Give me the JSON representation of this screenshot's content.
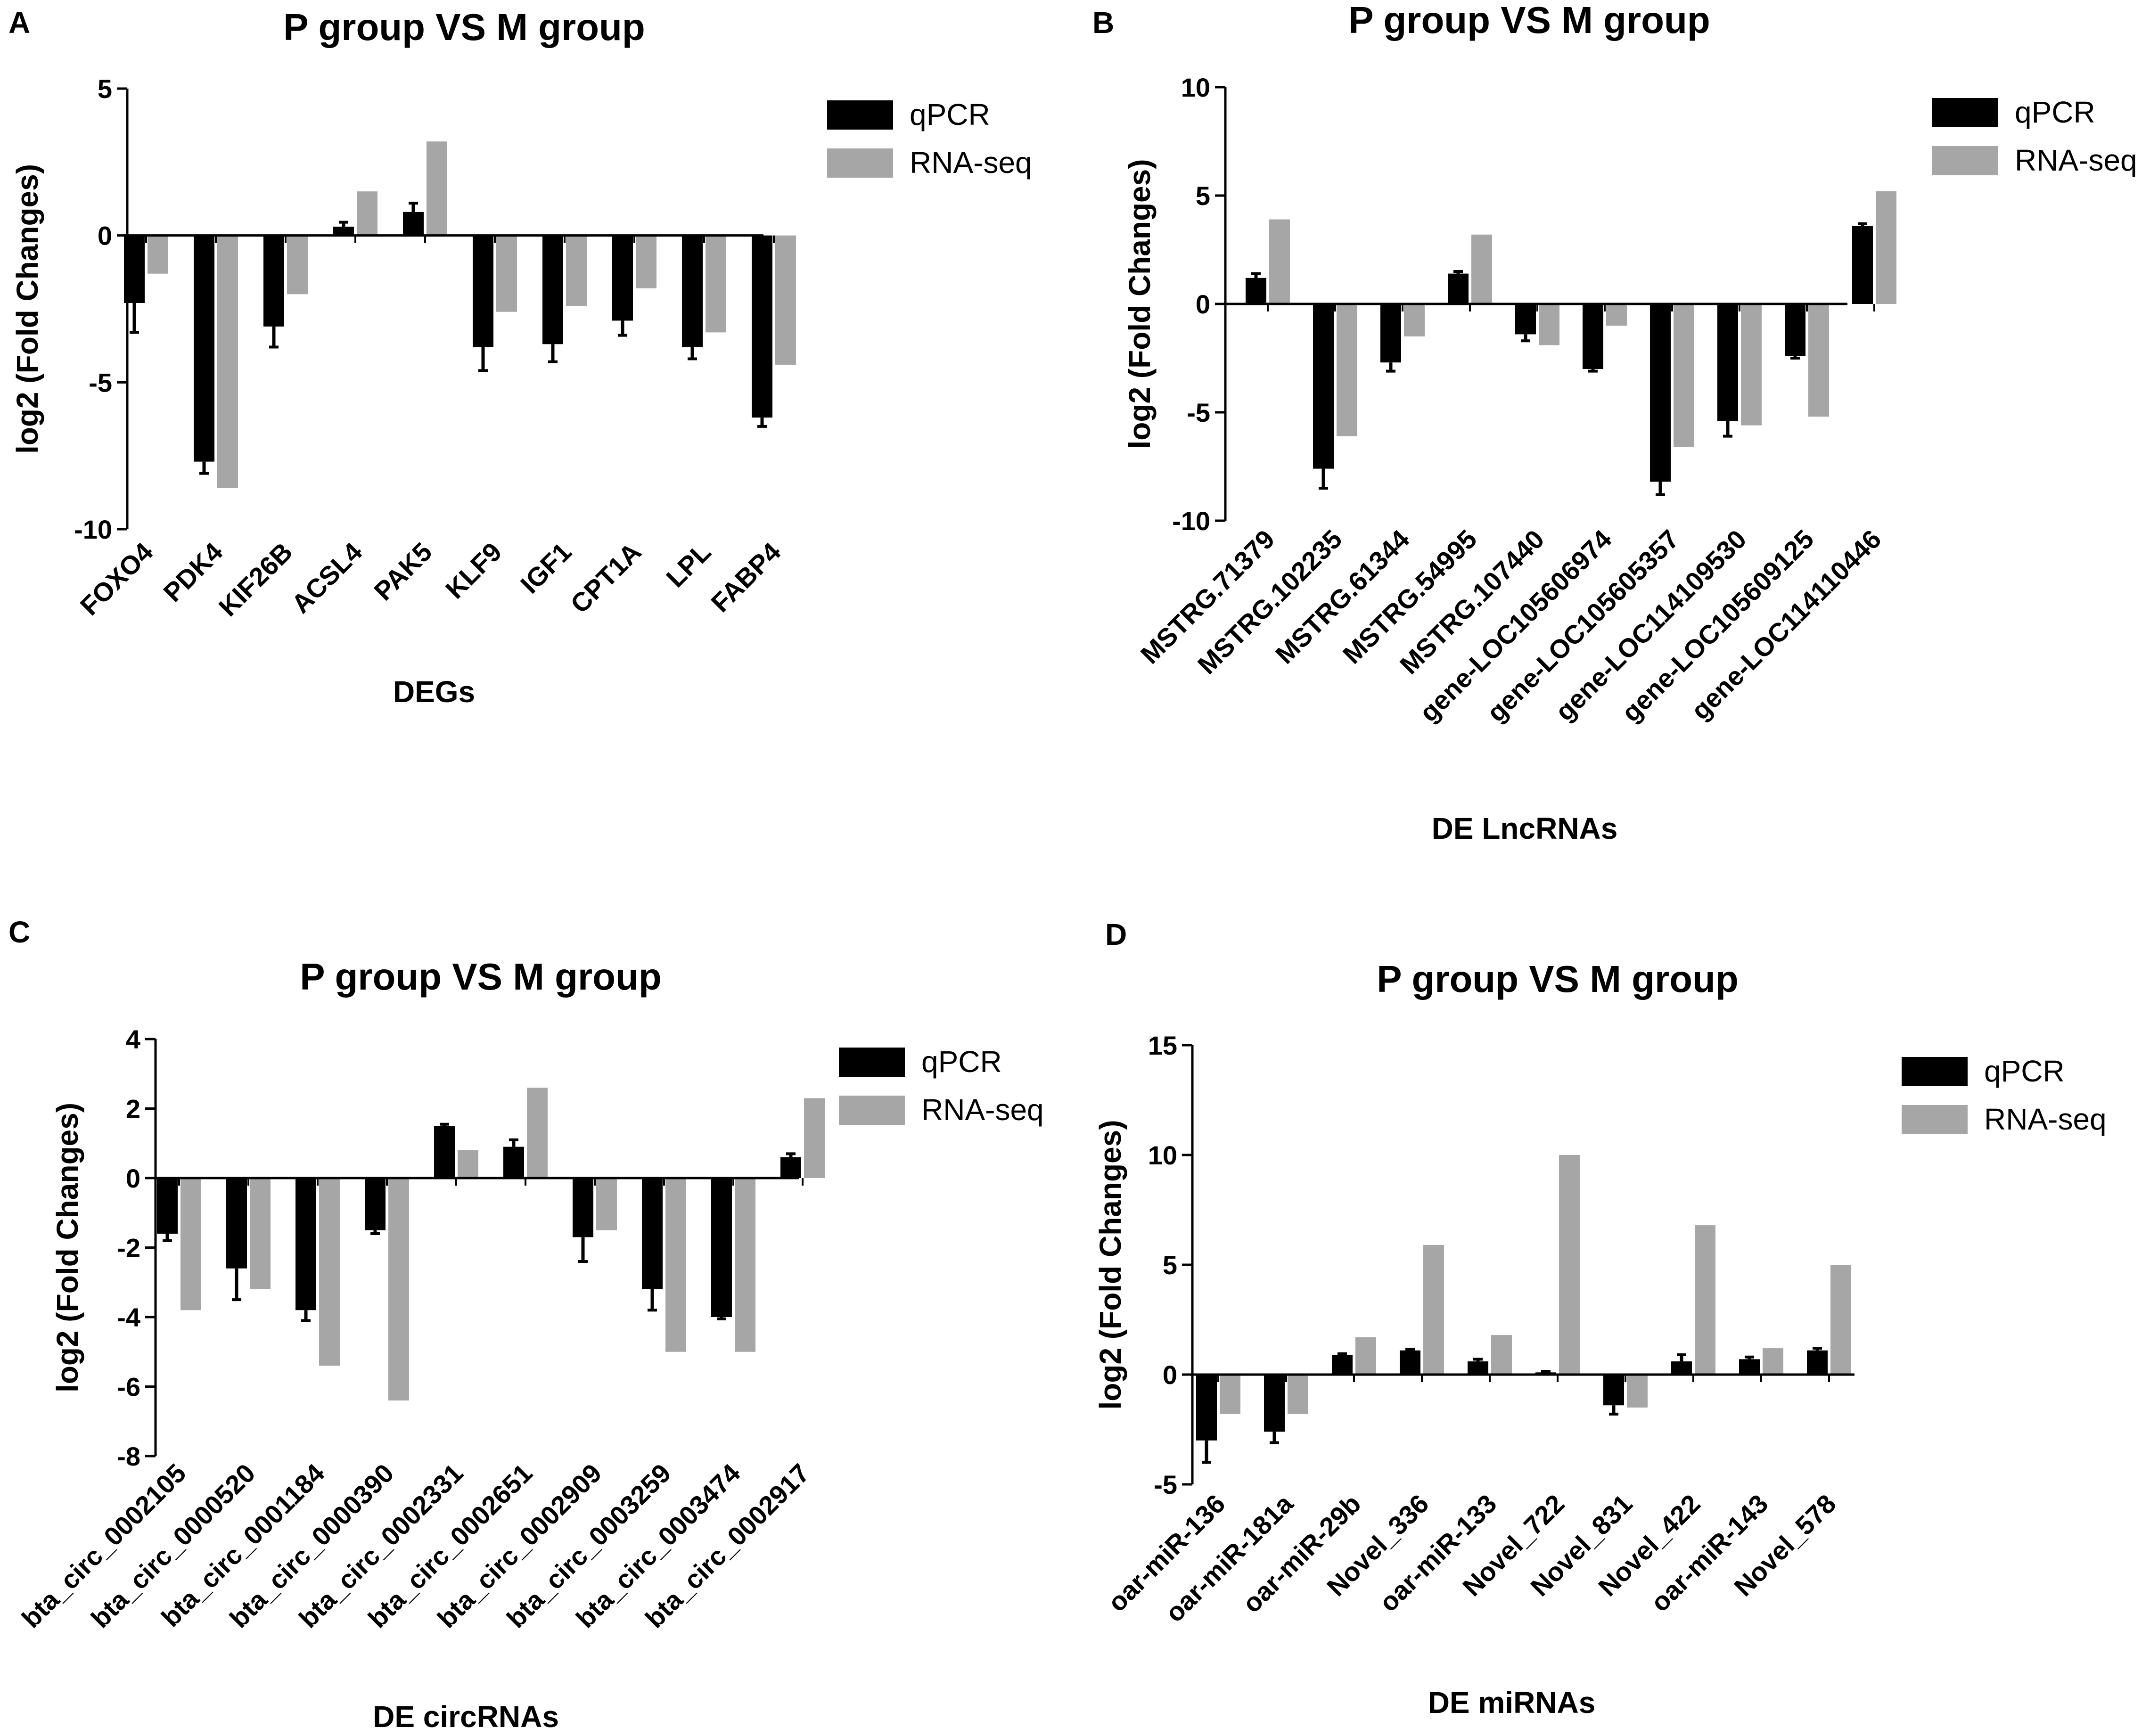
{
  "colors": {
    "qpcr": "#000000",
    "rnaseq": "#a6a6a6"
  },
  "chart_data": [
    {
      "type": "bar",
      "panel": "A",
      "title": "P group VS M group",
      "xlabel": "DEGs",
      "ylabel": "log2 (Fold Changes)",
      "ylim": [
        -10,
        5
      ],
      "yticks": [
        5,
        0,
        -5,
        -10
      ],
      "categories": [
        "FOXO4",
        "PDK4",
        "KIF26B",
        "ACSL4",
        "PAK5",
        "KLF9",
        "IGF1",
        "CPT1A",
        "LPL",
        "FABP4"
      ],
      "series": [
        {
          "name": "qPCR",
          "values": [
            -2.3,
            -7.7,
            -3.1,
            0.3,
            0.8,
            -3.8,
            -3.7,
            -2.9,
            -3.8,
            -6.2
          ],
          "errors": [
            1.0,
            0.4,
            0.7,
            0.15,
            0.3,
            0.8,
            0.6,
            0.5,
            0.4,
            0.3
          ]
        },
        {
          "name": "RNA-seq",
          "values": [
            -1.3,
            -8.6,
            -2.0,
            1.5,
            3.2,
            -2.6,
            -2.4,
            -1.8,
            -3.3,
            -4.4
          ]
        }
      ]
    },
    {
      "type": "bar",
      "panel": "B",
      "title": "P group VS M group",
      "xlabel": "DE LncRNAs",
      "ylabel": "log2 (Fold Changes)",
      "ylim": [
        -10,
        10
      ],
      "yticks": [
        10,
        5,
        0,
        -5,
        -10
      ],
      "categories": [
        "MSTRG.71379",
        "MSTRG.102235",
        "MSTRG.61344",
        "MSTRG.54995",
        "MSTRG.107440",
        "gene-LOC105606974",
        "gene-LOC105605357",
        "gene-LOC114109530",
        "gene-LOC105609125",
        "gene-LOC114110446"
      ],
      "series": [
        {
          "name": "qPCR",
          "values": [
            1.2,
            -7.6,
            -2.7,
            1.4,
            -1.4,
            -3.0,
            -8.2,
            -5.4,
            -2.4,
            3.6
          ],
          "errors": [
            0.2,
            0.9,
            0.4,
            0.1,
            0.3,
            0.1,
            0.6,
            0.7,
            0.1,
            0.1
          ]
        },
        {
          "name": "RNA-seq",
          "values": [
            3.9,
            -6.1,
            -1.5,
            3.2,
            -1.9,
            -1.0,
            -6.6,
            -5.6,
            -5.2,
            5.2
          ]
        }
      ]
    },
    {
      "type": "bar",
      "panel": "C",
      "title": "P group VS M group",
      "xlabel": "DE circRNAs",
      "ylabel": "log2 (Fold Changes)",
      "ylim": [
        -8,
        4
      ],
      "yticks": [
        4,
        2,
        0,
        -2,
        -4,
        -6,
        -8
      ],
      "categories": [
        "bta_circ_0002105",
        "bta_circ_0000520",
        "bta_circ_0001184",
        "bta_circ_0000390",
        "bta_circ_0002331",
        "bta_circ_0002651",
        "bta_circ_0002909",
        "bta_circ_0003259",
        "bta_circ_0003474",
        "bta_circ_0002917"
      ],
      "series": [
        {
          "name": "qPCR",
          "values": [
            -1.6,
            -2.6,
            -3.8,
            -1.5,
            1.5,
            0.9,
            -1.7,
            -3.2,
            -4.0,
            0.6
          ],
          "errors": [
            0.2,
            0.9,
            0.3,
            0.1,
            0.05,
            0.2,
            0.7,
            0.6,
            0.05,
            0.1
          ]
        },
        {
          "name": "RNA-seq",
          "values": [
            -3.8,
            -3.2,
            -5.4,
            -6.4,
            0.8,
            2.6,
            -1.5,
            -5.0,
            -5.0,
            2.3
          ]
        }
      ]
    },
    {
      "type": "bar",
      "panel": "D",
      "title": "P group VS M group",
      "xlabel": "DE miRNAs",
      "ylabel": "log2 (Fold Changes)",
      "ylim": [
        -5,
        15
      ],
      "yticks": [
        15,
        10,
        5,
        0,
        -5
      ],
      "categories": [
        "oar-miR-136",
        "oar-miR-181a",
        "oar-miR-29b",
        "Novel_336",
        "oar-miR-133",
        "Novel_722",
        "Novel_831",
        "Novel_422",
        "oar-miR-143",
        "Novel_578"
      ],
      "series": [
        {
          "name": "qPCR",
          "values": [
            -3.0,
            -2.6,
            0.9,
            1.1,
            0.6,
            0.1,
            -1.4,
            0.6,
            0.7,
            1.1
          ],
          "errors": [
            1.0,
            0.5,
            0.05,
            0.05,
            0.1,
            0.05,
            0.4,
            0.3,
            0.1,
            0.1
          ]
        },
        {
          "name": "RNA-seq",
          "values": [
            -1.8,
            -1.8,
            1.7,
            5.9,
            1.8,
            10.0,
            -1.5,
            6.8,
            1.2,
            5.0
          ]
        }
      ]
    }
  ]
}
